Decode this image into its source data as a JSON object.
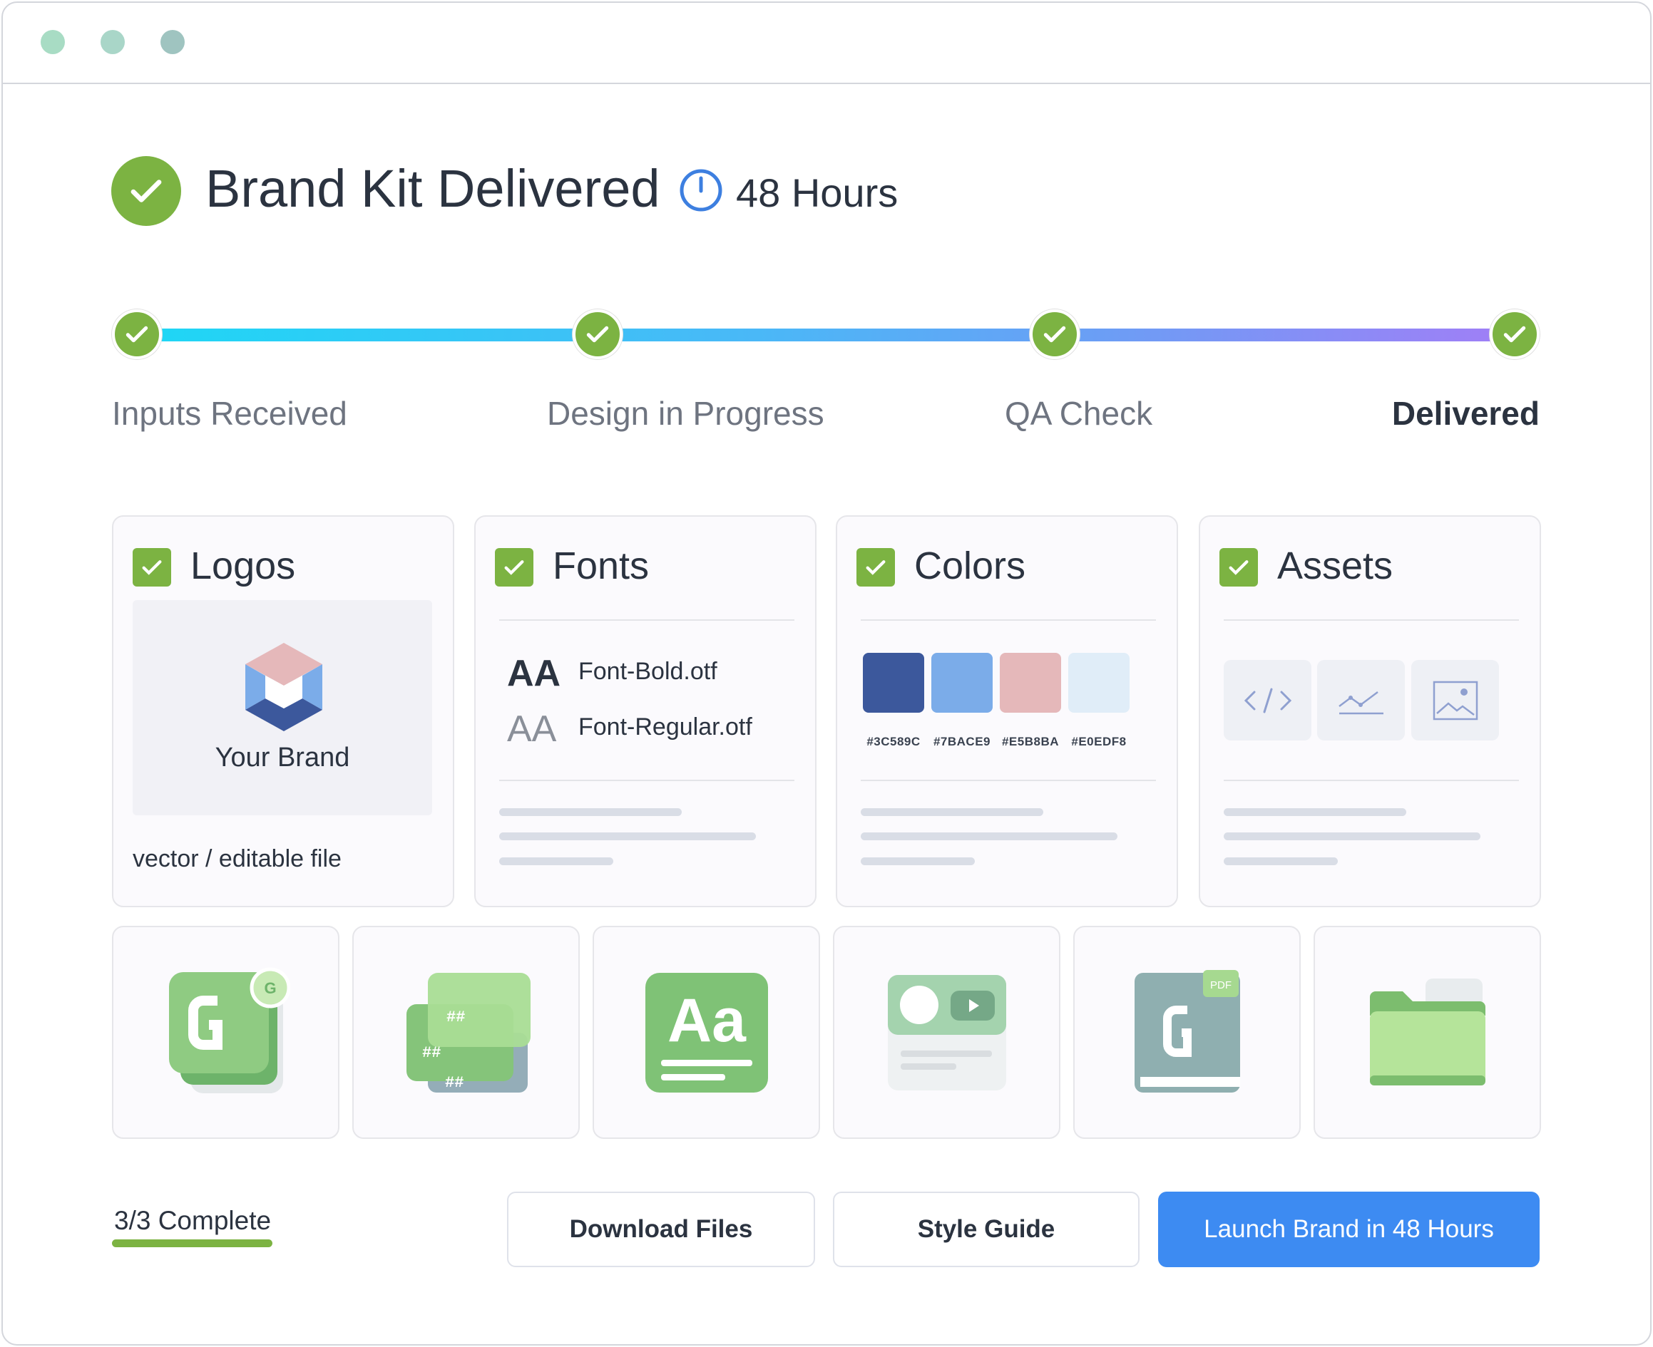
{
  "header": {
    "title": "Brand Kit Delivered",
    "duration": "48 Hours",
    "icons": [
      "check-circle-icon",
      "clock-icon"
    ]
  },
  "window_dots": [
    "#a8dcc4",
    "#a9d6c8",
    "#9fc4c0"
  ],
  "progress": {
    "steps": [
      {
        "label": "Inputs Received",
        "done": true
      },
      {
        "label": "Design in Progress",
        "done": true
      },
      {
        "label": "QA Check",
        "done": true
      },
      {
        "label": "Delivered",
        "done": true,
        "current": true
      }
    ]
  },
  "cards": {
    "logos": {
      "title": "Logos",
      "brand_name": "Your Brand",
      "caption": "vector / editable file"
    },
    "fonts": {
      "title": "Fonts",
      "files": [
        {
          "sample": "AA",
          "name": "Font-Bold.otf"
        },
        {
          "sample": "AA",
          "name": "Font-Regular.otf"
        }
      ]
    },
    "colors": {
      "title": "Colors",
      "swatches": [
        "#3C589C",
        "#7BACE9",
        "#E5B8BA",
        "#E0EDF8"
      ]
    },
    "assets": {
      "title": "Assets",
      "icons": [
        "code-icon",
        "chart-icon",
        "image-icon"
      ]
    }
  },
  "tiles": [
    "logo-files-icon",
    "color-codes-icon",
    "typography-icon",
    "media-kit-icon",
    "pdf-guide-icon",
    "folder-icon"
  ],
  "footer": {
    "status": "3/3 Complete",
    "progress": 1.0,
    "download": "Download Files",
    "style_guide": "Style Guide",
    "launch": "Launch Brand in 48 Hours"
  },
  "colors": {
    "accent": "#3d8bf2",
    "success": "#7cb342"
  }
}
